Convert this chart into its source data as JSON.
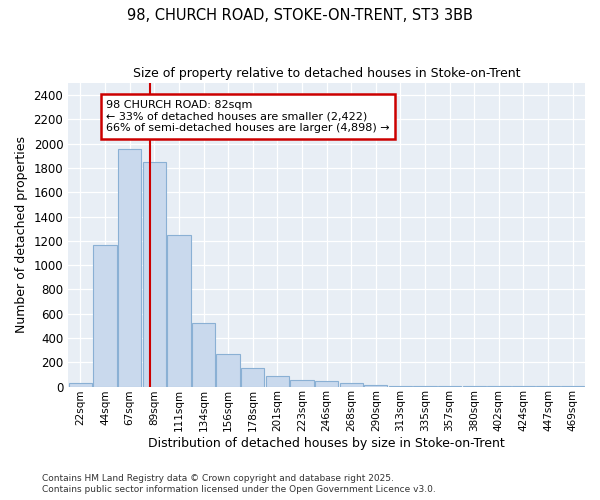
{
  "title_line1": "98, CHURCH ROAD, STOKE-ON-TRENT, ST3 3BB",
  "title_line2": "Size of property relative to detached houses in Stoke-on-Trent",
  "xlabel": "Distribution of detached houses by size in Stoke-on-Trent",
  "ylabel": "Number of detached properties",
  "categories": [
    "22sqm",
    "44sqm",
    "67sqm",
    "89sqm",
    "111sqm",
    "134sqm",
    "156sqm",
    "178sqm",
    "201sqm",
    "223sqm",
    "246sqm",
    "268sqm",
    "290sqm",
    "313sqm",
    "335sqm",
    "357sqm",
    "380sqm",
    "402sqm",
    "424sqm",
    "447sqm",
    "469sqm"
  ],
  "values": [
    30,
    1170,
    1960,
    1850,
    1250,
    520,
    270,
    150,
    85,
    50,
    45,
    30,
    15,
    5,
    3,
    2,
    2,
    2,
    1,
    1,
    1
  ],
  "bar_color": "#c9d9ed",
  "bar_edge_color": "#8ab0d4",
  "vline_x": 2.82,
  "vline_color": "#cc0000",
  "annotation_text": "98 CHURCH ROAD: 82sqm\n← 33% of detached houses are smaller (2,422)\n66% of semi-detached houses are larger (4,898) →",
  "annotation_box_color": "#ffffff",
  "annotation_box_edge": "#cc0000",
  "ylim": [
    0,
    2500
  ],
  "yticks": [
    0,
    200,
    400,
    600,
    800,
    1000,
    1200,
    1400,
    1600,
    1800,
    2000,
    2200,
    2400
  ],
  "bg_color": "#e8eef5",
  "grid_color": "#ffffff",
  "footer_line1": "Contains HM Land Registry data © Crown copyright and database right 2025.",
  "footer_line2": "Contains public sector information licensed under the Open Government Licence v3.0."
}
